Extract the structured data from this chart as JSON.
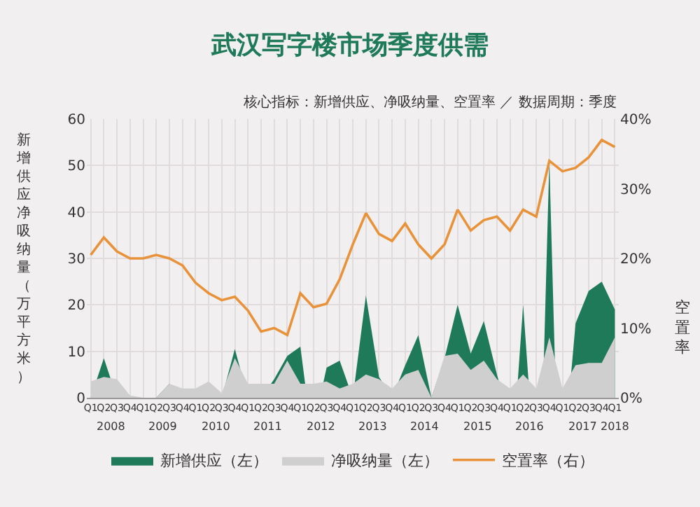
{
  "chart_data": {
    "type": "area",
    "title": "武汉写字楼市场季度供需",
    "subtitle": "核心指标：新增供应、净吸纳量、空置率 ／ 数据周期：季度",
    "ylabel": "新增供应净吸纳量（万平方米）",
    "y2label": "空置率",
    "categories": [
      "Q1",
      "Q2",
      "Q3",
      "Q4",
      "Q1",
      "Q2",
      "Q3",
      "Q4",
      "Q1",
      "Q2",
      "Q3",
      "Q4",
      "Q1",
      "Q2",
      "Q3",
      "Q4",
      "Q1",
      "Q2",
      "Q3",
      "Q4",
      "Q1",
      "Q2",
      "Q3",
      "Q4",
      "Q1",
      "Q2",
      "Q3",
      "Q4",
      "Q1",
      "Q2",
      "Q3",
      "Q4",
      "Q1",
      "Q2",
      "Q3",
      "Q4",
      "Q1",
      "Q2",
      "Q3",
      "Q4",
      "Q1"
    ],
    "annotations": [
      "2008",
      "2009",
      "2010",
      "2011",
      "2012",
      "2013",
      "2014",
      "2015",
      "2016",
      "2017",
      "2018"
    ],
    "series": [
      {
        "name": "新增供应（左）",
        "color": "#1f7a5a",
        "values": [
          0,
          8.5,
          0,
          0,
          0,
          0,
          3,
          0,
          0,
          0,
          0,
          10.5,
          0,
          0,
          4,
          9,
          11,
          null,
          6.5,
          8,
          0,
          22,
          4.5,
          0,
          7,
          13.5,
          0,
          8.5,
          20,
          9.5,
          16.5,
          5,
          null,
          20,
          null,
          51,
          null,
          16,
          23,
          25,
          19
        ]
      },
      {
        "name": "净吸纳量（左）",
        "color": "#cfcfcf",
        "values": [
          3.5,
          4.5,
          4,
          0.5,
          0,
          0,
          3,
          2,
          2,
          3.5,
          1,
          8.5,
          3,
          3,
          3,
          8,
          3,
          3,
          3.5,
          2,
          3,
          5,
          4,
          2,
          5,
          6,
          0,
          9,
          9.5,
          6,
          8,
          4,
          2,
          5,
          2,
          13,
          2,
          7,
          7.5,
          7.5,
          13
        ]
      },
      {
        "name": "空置率（右）",
        "type": "line",
        "axis": "y2",
        "color": "#e8923a",
        "values": [
          20.5,
          23,
          21,
          20,
          20,
          20.5,
          20,
          19,
          16.5,
          15,
          14,
          14.5,
          12.5,
          9.5,
          10,
          9,
          15,
          13,
          13.5,
          17,
          22,
          26.5,
          23.5,
          22.5,
          25,
          22,
          20,
          22,
          27,
          24,
          25.5,
          26,
          24,
          27,
          26,
          34,
          32.5,
          33,
          34.5,
          37,
          36
        ]
      }
    ],
    "ylim": [
      0,
      60
    ],
    "yticks": [
      0,
      10,
      20,
      30,
      40,
      50,
      60
    ],
    "y2lim": [
      0,
      40
    ],
    "y2ticks": [
      {
        "value": 0,
        "label": "0%"
      },
      {
        "value": 10,
        "label": "10%"
      },
      {
        "value": 20,
        "label": "20%"
      },
      {
        "value": 30,
        "label": "30%"
      },
      {
        "value": 40,
        "label": "40%"
      }
    ],
    "grid": true,
    "legend": "bottom"
  }
}
